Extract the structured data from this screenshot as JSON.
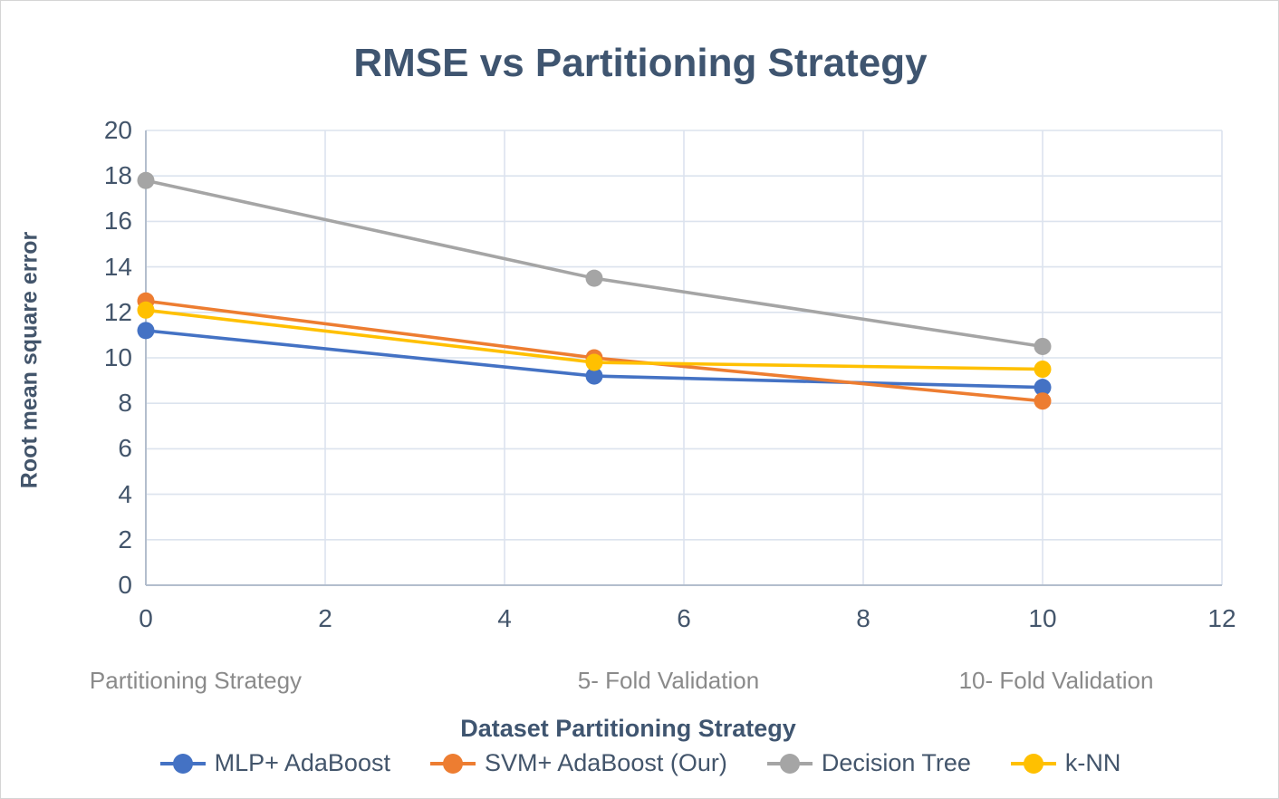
{
  "chart": {
    "title": "RMSE vs Partitioning Strategy",
    "x_axis_title": "Dataset Partitioning Strategy",
    "y_axis_title": "Root mean square error"
  },
  "chart_data": {
    "type": "line",
    "title": "RMSE vs Partitioning Strategy",
    "xlabel": "Dataset Partitioning Strategy",
    "ylabel": "Root mean square error",
    "x": [
      0,
      5,
      10
    ],
    "xlim": [
      0,
      12
    ],
    "ylim": [
      0,
      20
    ],
    "x_ticks": [
      0,
      2,
      4,
      6,
      8,
      10,
      12
    ],
    "y_ticks": [
      0,
      2,
      4,
      6,
      8,
      10,
      12,
      14,
      16,
      18,
      20
    ],
    "grid": true,
    "legend_position": "bottom",
    "category_labels": [
      "Partitioning Strategy",
      "5- Fold Validation",
      "10- Fold Validation"
    ],
    "series": [
      {
        "name": "MLP+ AdaBoost",
        "color": "#4472C4",
        "values": [
          11.2,
          9.2,
          8.7
        ]
      },
      {
        "name": "SVM+ AdaBoost (Our)",
        "color": "#ED7D31",
        "values": [
          12.5,
          10.0,
          8.1
        ]
      },
      {
        "name": "Decision Tree",
        "color": "#A5A5A5",
        "values": [
          17.8,
          13.5,
          10.5
        ]
      },
      {
        "name": "k-NN",
        "color": "#FFC000",
        "values": [
          12.1,
          9.8,
          9.5
        ]
      }
    ]
  },
  "colors": {
    "title_text": "#3f5570",
    "axis_text": "#43556b",
    "category_text": "#8a8a8a",
    "gridline": "#dce3ee",
    "axis_line": "#b3becd",
    "background": "#ffffff",
    "border": "#d5d5d5"
  }
}
